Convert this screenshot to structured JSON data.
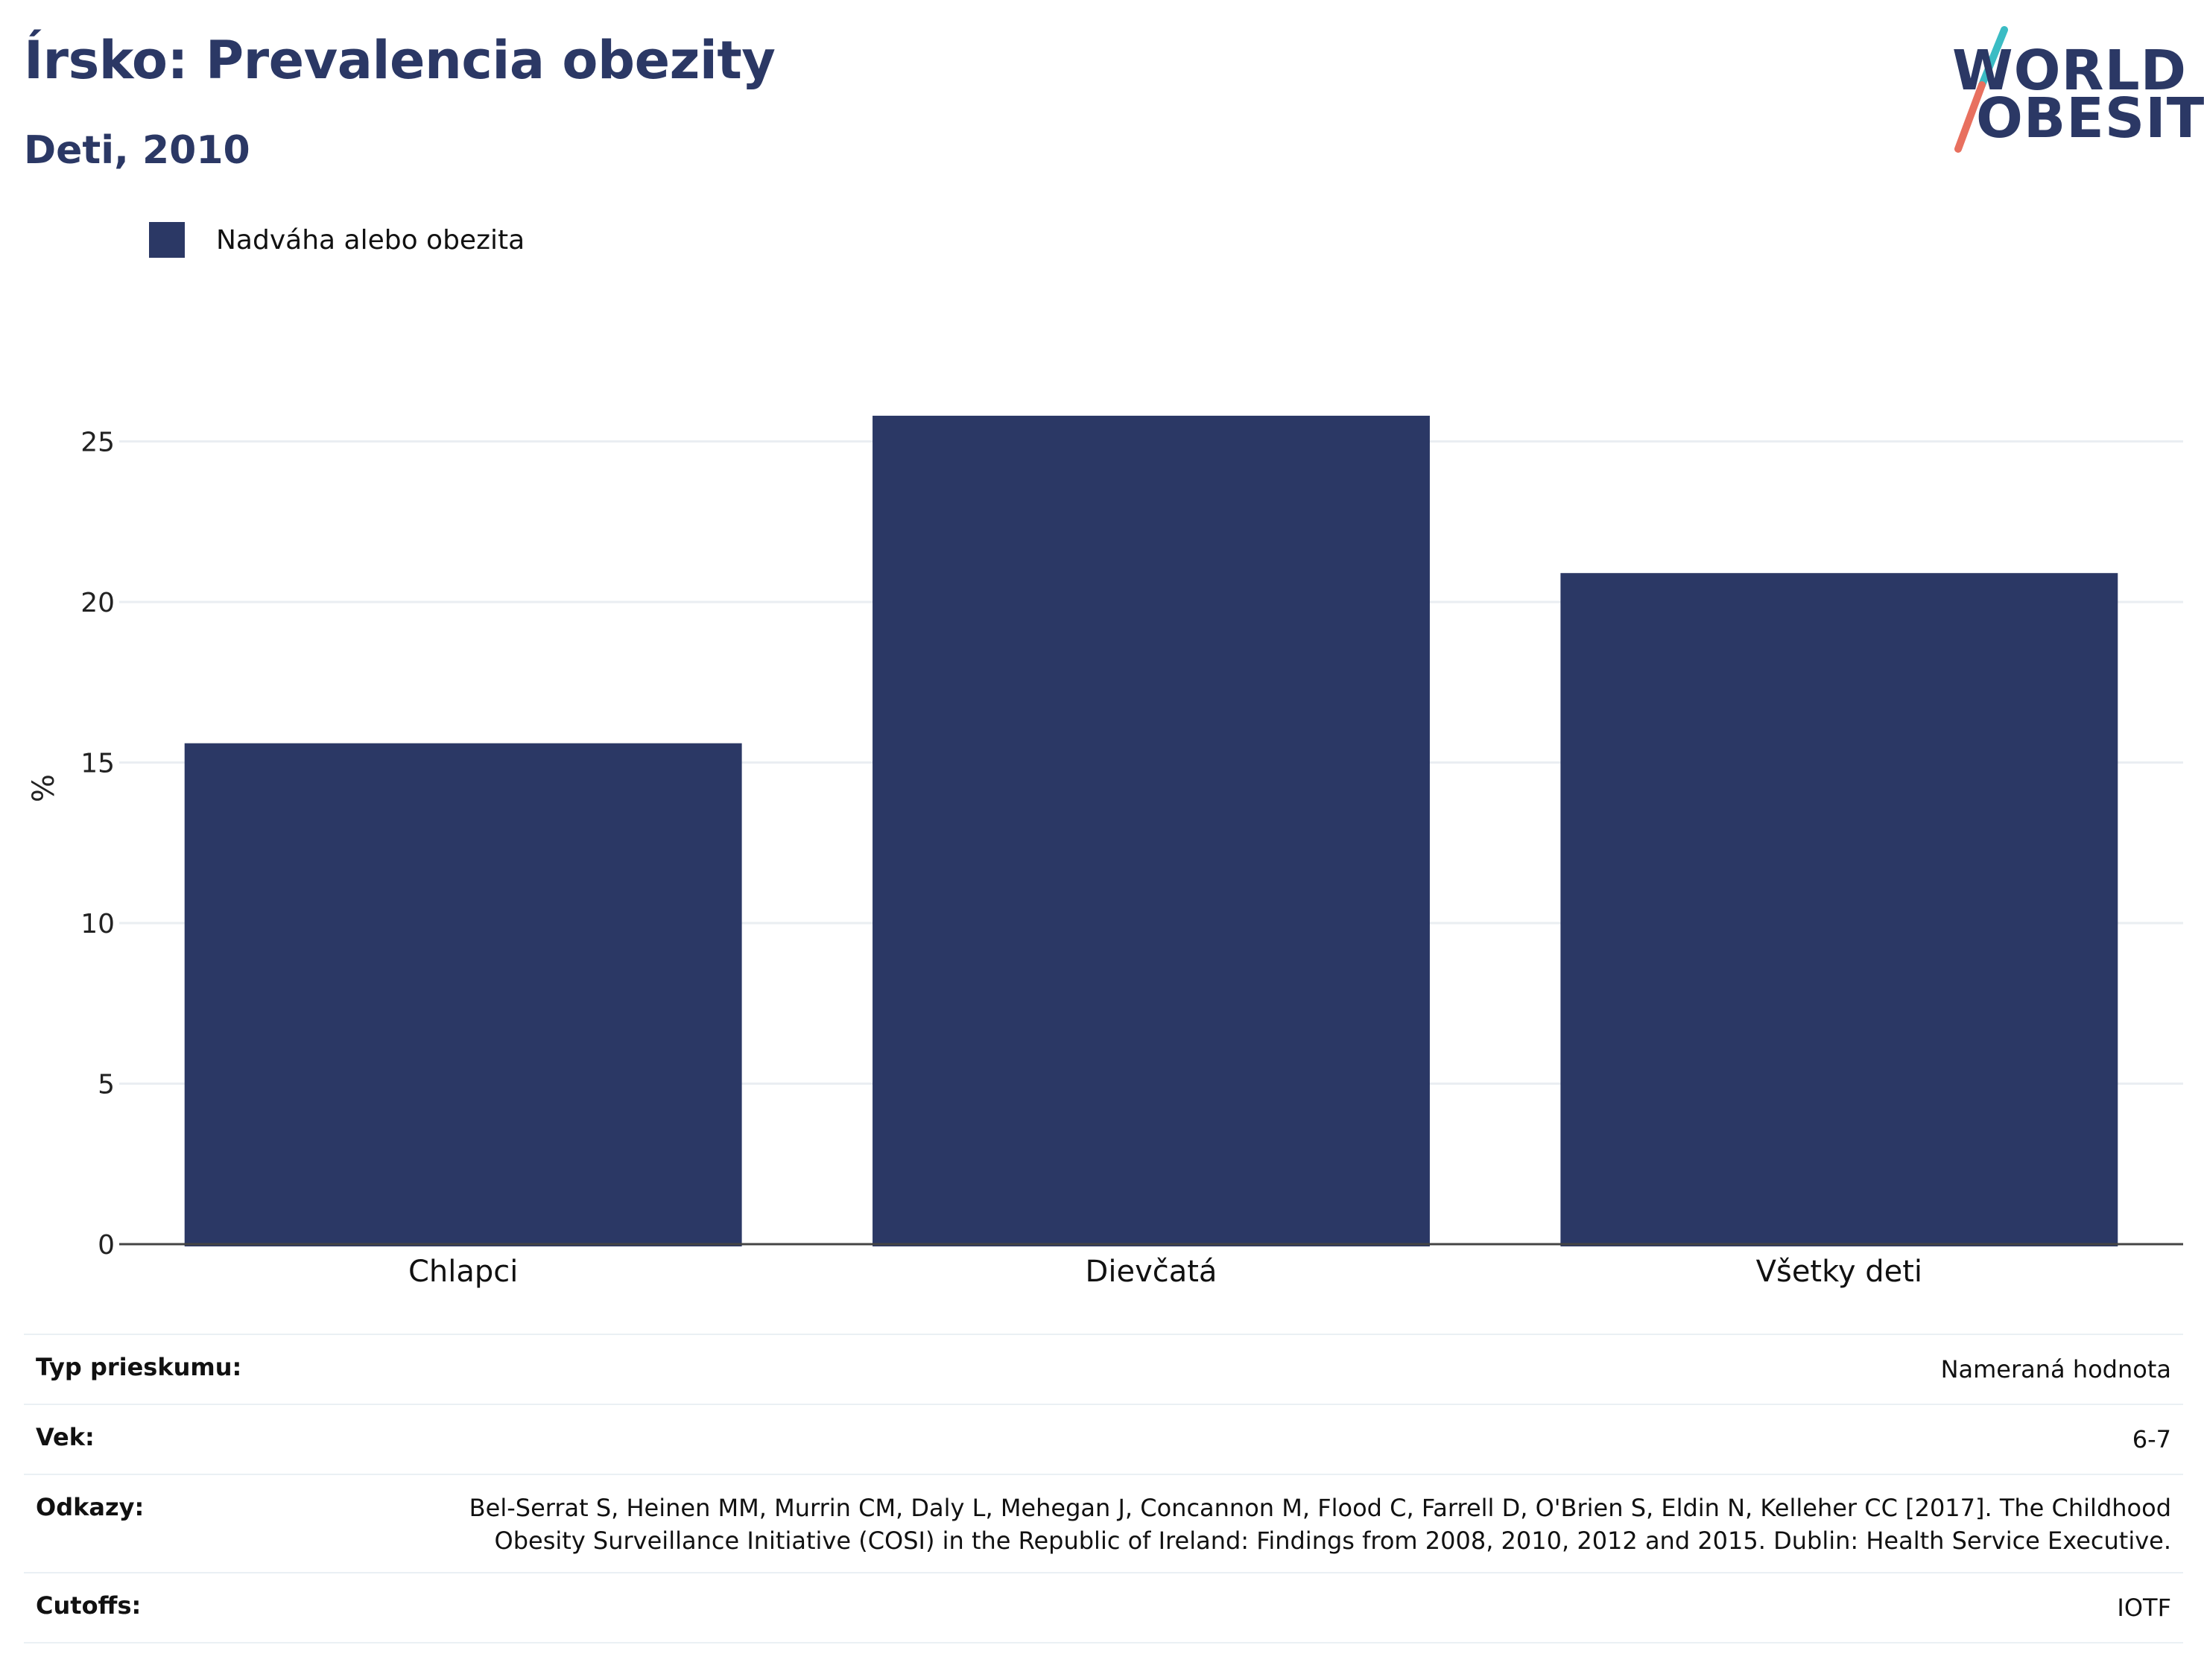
{
  "header": {
    "title": "Írsko: Prevalencia obezity",
    "subtitle": "Deti, 2010"
  },
  "logo": {
    "line1": "WORLD",
    "line2": "OBESITY",
    "colors": {
      "text": "#2b3865",
      "slash_top": "#3bbcc4",
      "slash_bottom": "#e8705f"
    }
  },
  "legend": {
    "items": [
      {
        "label": "Nadváha alebo obezita",
        "color": "#2b3865"
      }
    ]
  },
  "chart_data": {
    "type": "bar",
    "categories": [
      "Chlapci",
      "Dievčatá",
      "Všetky deti"
    ],
    "series": [
      {
        "name": "Nadváha alebo obezita",
        "values": [
          15.6,
          25.8,
          20.9
        ],
        "color": "#2b3865"
      }
    ],
    "title": "Írsko: Prevalencia obezity",
    "subtitle": "Deti, 2010",
    "xlabel": "",
    "ylabel": "%",
    "ylim": [
      0,
      27.5
    ],
    "yticks": [
      0,
      5,
      10,
      15,
      20,
      25
    ],
    "grid": true,
    "legend_position": "top-left"
  },
  "info": {
    "rows": [
      {
        "key": "Typ prieskumu:",
        "value": "Nameraná hodnota"
      },
      {
        "key": "Vek:",
        "value": "6-7"
      },
      {
        "key": "Odkazy:",
        "value": "Bel-Serrat S, Heinen MM, Murrin CM, Daly L, Mehegan J, Concannon M, Flood C, Farrell D, O'Brien S, Eldin N, Kelleher CC [2017]. The Childhood Obesity Surveillance Initiative (COSI) in the Republic of Ireland: Findings from 2008, 2010, 2012 and 2015. Dublin: Health Service Executive."
      },
      {
        "key": "Cutoffs:",
        "value": "IOTF"
      }
    ]
  }
}
